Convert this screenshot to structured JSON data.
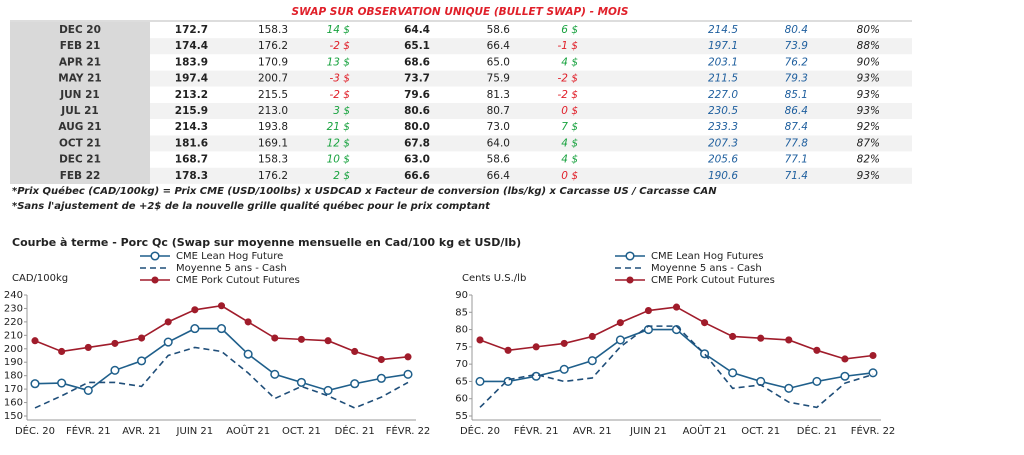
{
  "table": {
    "title": "SWAP SUR OBSERVATION UNIQUE (BULLET SWAP) - MOIS",
    "rows": [
      [
        "DEC 20",
        "172.7",
        "158.3",
        "14 $",
        "64.4",
        "58.6",
        "6 $",
        "214.5",
        "80.4",
        "80%"
      ],
      [
        "FEB 21",
        "174.4",
        "176.2",
        "-2 $",
        "65.1",
        "66.4",
        "-1 $",
        "197.1",
        "73.9",
        "88%"
      ],
      [
        "APR 21",
        "183.9",
        "170.9",
        "13 $",
        "68.6",
        "65.0",
        "4 $",
        "203.1",
        "76.2",
        "90%"
      ],
      [
        "MAY 21",
        "197.4",
        "200.7",
        "-3 $",
        "73.7",
        "75.9",
        "-2 $",
        "211.5",
        "79.3",
        "93%"
      ],
      [
        "JUN 21",
        "213.2",
        "215.5",
        "-2 $",
        "79.6",
        "81.3",
        "-2 $",
        "227.0",
        "85.1",
        "93%"
      ],
      [
        "JUL 21",
        "215.9",
        "213.0",
        "3 $",
        "80.6",
        "80.7",
        "0 $",
        "230.5",
        "86.4",
        "93%"
      ],
      [
        "AUG 21",
        "214.3",
        "193.8",
        "21 $",
        "80.0",
        "73.0",
        "7 $",
        "233.3",
        "87.4",
        "92%"
      ],
      [
        "OCT 21",
        "181.6",
        "169.1",
        "12 $",
        "67.8",
        "64.0",
        "4 $",
        "207.3",
        "77.8",
        "87%"
      ],
      [
        "DEC 21",
        "168.7",
        "158.3",
        "10 $",
        "63.0",
        "58.6",
        "4 $",
        "205.6",
        "77.1",
        "82%"
      ],
      [
        "FEB 22",
        "178.3",
        "176.2",
        "2 $",
        "66.6",
        "66.4",
        "0 $",
        "190.6",
        "71.4",
        "93%"
      ]
    ]
  },
  "footnotes": [
    "*Prix Québec (CAD/100kg) = Prix CME (USD/100lbs) x USDCAD x Facteur de conversion (lbs/kg) x Carcasse US / Carcasse CAN",
    "*Sans l'ajustement de +2$ de la nouvelle grille qualité québec pour le prix comptant"
  ],
  "section_title": "Courbe à terme - Porc Qc (Swap sur moyenne mensuelle en Cad/100 kg et USD/lb)",
  "chart_data": [
    {
      "type": "line",
      "ylabel": "CAD/100kg",
      "categories": [
        "DÉC. 20",
        null,
        "FÉVR. 21",
        null,
        "AVR. 21",
        null,
        "JUIN 21",
        null,
        "AOÛT 21",
        null,
        "OCT. 21",
        null,
        "DÉC. 21",
        null,
        "FÉVR. 22"
      ],
      "ylim": [
        150,
        240
      ],
      "yticks": [
        150,
        160,
        170,
        180,
        190,
        200,
        210,
        220,
        230,
        240
      ],
      "grid": false,
      "legend": "top",
      "series": [
        {
          "name": "CME Lean Hog Future",
          "color": "#1f5f8b",
          "marker": "open",
          "dash": false,
          "values": [
            174,
            174.5,
            169,
            184,
            191,
            205,
            215,
            215,
            196,
            181,
            175,
            169,
            174,
            178,
            181
          ]
        },
        {
          "name": "Moyenne 5 ans - Cash",
          "color": "#1f4e79",
          "marker": null,
          "dash": true,
          "values": [
            156,
            165,
            175,
            175,
            172,
            195,
            201,
            198,
            182,
            163,
            172,
            165,
            156,
            164,
            175
          ]
        },
        {
          "name": "CME Pork Cutout Futures",
          "color": "#a01c2b",
          "marker": "filled",
          "dash": false,
          "values": [
            206,
            198,
            201,
            204,
            208,
            220,
            229,
            232,
            220,
            208,
            207,
            206,
            198,
            192,
            194
          ]
        }
      ]
    },
    {
      "type": "line",
      "ylabel": "Cents U.S./lb",
      "categories": [
        "DÉC. 20",
        null,
        "FÉVR. 21",
        null,
        "AVR. 21",
        null,
        "JUIN 21",
        null,
        "AOÛT 21",
        null,
        "OCT. 21",
        null,
        "DÉC. 21",
        null,
        "FÉVR. 22"
      ],
      "ylim": [
        55,
        90
      ],
      "yticks": [
        55,
        60,
        65,
        70,
        75,
        80,
        85,
        90
      ],
      "grid": false,
      "legend": "top",
      "series": [
        {
          "name": "CME Lean Hog Futures",
          "color": "#1f5f8b",
          "marker": "open",
          "dash": false,
          "values": [
            65,
            65,
            66.5,
            68.5,
            71,
            77,
            80,
            80,
            73,
            67.5,
            65,
            63,
            65,
            66.5,
            67.5
          ]
        },
        {
          "name": "Moyenne 5 ans - Cash",
          "color": "#1f4e79",
          "marker": null,
          "dash": true,
          "values": [
            57.5,
            65.5,
            67,
            65,
            66,
            75,
            81,
            81,
            73,
            63,
            64,
            59,
            57.5,
            64.5,
            67
          ]
        },
        {
          "name": "CME Pork Cutout Futures",
          "color": "#a01c2b",
          "marker": "filled",
          "dash": false,
          "values": [
            77,
            74,
            75,
            76,
            78,
            82,
            85.5,
            86.5,
            82,
            78,
            77.5,
            77,
            74,
            71.5,
            72.5
          ]
        }
      ]
    }
  ]
}
